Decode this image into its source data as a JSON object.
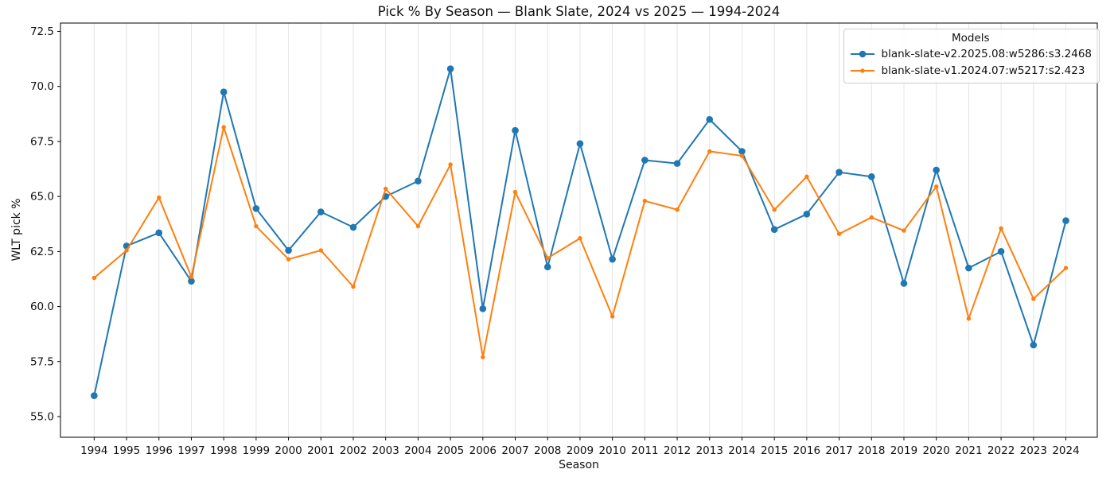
{
  "title": "Pick % By Season — Blank Slate, 2024 vs 2025 — 1994-2024",
  "legend": {
    "title": "Models",
    "entries": [
      {
        "label": "blank-slate-v2.2025.08:w5286:s3.2468",
        "color": "#1f77b4",
        "marker_radius": 4.3
      },
      {
        "label": "blank-slate-v1.2024.07:w5217:s2.423",
        "color": "#ff7f0e",
        "marker_radius": 2.7
      }
    ]
  },
  "chart_data": {
    "type": "line",
    "title": "Pick % By Season — Blank Slate, 2024 vs 2025 — 1994-2024",
    "xlabel": "Season",
    "ylabel": "WLT pick %",
    "x": [
      1994,
      1995,
      1996,
      1997,
      1998,
      1999,
      2000,
      2001,
      2002,
      2003,
      2004,
      2005,
      2006,
      2007,
      2008,
      2009,
      2010,
      2011,
      2012,
      2013,
      2014,
      2015,
      2016,
      2017,
      2018,
      2019,
      2020,
      2021,
      2022,
      2023,
      2024
    ],
    "series": [
      {
        "name": "blank-slate-v2.2025.08:w5286:s3.2468",
        "color": "#1f77b4",
        "marker_radius": 4.3,
        "line_width": 2,
        "values": [
          55.95,
          62.75,
          63.35,
          61.15,
          69.75,
          64.45,
          62.55,
          64.3,
          63.6,
          65.0,
          65.7,
          70.8,
          59.9,
          68.0,
          61.8,
          67.4,
          62.15,
          66.65,
          66.5,
          68.5,
          67.05,
          63.5,
          64.2,
          66.1,
          65.9,
          61.05,
          66.2,
          61.75,
          62.5,
          58.25,
          63.9
        ]
      },
      {
        "name": "blank-slate-v1.2024.07:w5217:s2.423",
        "color": "#ff7f0e",
        "marker_radius": 2.7,
        "line_width": 2,
        "values": [
          61.3,
          62.55,
          64.95,
          61.35,
          68.15,
          63.65,
          62.15,
          62.55,
          60.9,
          65.35,
          63.65,
          66.45,
          57.7,
          65.2,
          62.2,
          63.1,
          59.55,
          64.8,
          64.4,
          67.05,
          66.85,
          64.4,
          65.9,
          63.3,
          64.05,
          63.45,
          65.45,
          59.45,
          63.55,
          60.35,
          61.75
        ]
      }
    ],
    "xlim": [
      1992.96,
      2024.97
    ],
    "ylim": [
      54.06,
      72.88
    ],
    "yticks": [
      55.0,
      57.5,
      60.0,
      62.5,
      65.0,
      67.5,
      70.0,
      72.5
    ],
    "grid": "vertical",
    "grid_color": "#e4e4e4",
    "spine_color": "#000000",
    "legend_position": "upper right"
  }
}
